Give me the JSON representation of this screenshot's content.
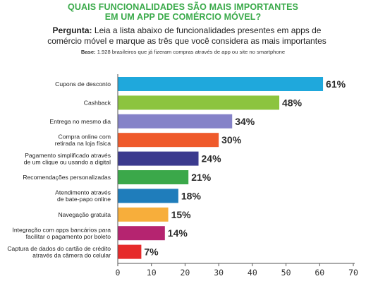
{
  "header": {
    "title_line1": "QUAIS FUNCIONALIDADES SÃO MAIS IMPORTANTES",
    "title_line2": "EM UM APP DE COMÉRCIO MÓVEL?",
    "question_label": "Pergunta:",
    "question_text": "Leia a lista abaixo de funcionalidades presentes em apps de comércio móvel e marque as três que você considera as mais importantes",
    "base_label": "Base:",
    "base_text": "1.928 brasileiros que já fizeram compras através de app ou site no smartphone"
  },
  "chart_data": {
    "type": "bar",
    "orientation": "horizontal",
    "title": "QUAIS FUNCIONALIDADES SÃO MAIS IMPORTANTES EM UM APP DE COMÉRCIO MÓVEL?",
    "categories": [
      [
        "Cupons de desconto"
      ],
      [
        "Cashback"
      ],
      [
        "Entrega no mesmo dia"
      ],
      [
        "Compra online com",
        "retirada na loja física"
      ],
      [
        "Pagamento simplificado através",
        "de um clique ou usando a digital"
      ],
      [
        "Recomendações personalizadas"
      ],
      [
        "Atendimento através",
        "de bate-papo online"
      ],
      [
        "Navegação gratuita"
      ],
      [
        "Integração com apps bancários para",
        "facilitar o pagamento por boleto"
      ],
      [
        "Captura de dados do cartão de crédito",
        "através da câmera do celular"
      ]
    ],
    "values": [
      61,
      48,
      34,
      30,
      24,
      21,
      18,
      15,
      14,
      7
    ],
    "value_labels": [
      "61%",
      "48%",
      "34%",
      "30%",
      "24%",
      "21%",
      "18%",
      "15%",
      "14%",
      "7%"
    ],
    "colors": [
      "#1fa8dc",
      "#8cc43f",
      "#8582c8",
      "#ef5a2b",
      "#3b3a8e",
      "#3ba84a",
      "#1f7dbb",
      "#f7ae3b",
      "#b52470",
      "#e62a2a"
    ],
    "xlim": [
      0,
      70
    ],
    "xticks": [
      0,
      10,
      20,
      30,
      40,
      50,
      60,
      70
    ],
    "grid": false
  }
}
